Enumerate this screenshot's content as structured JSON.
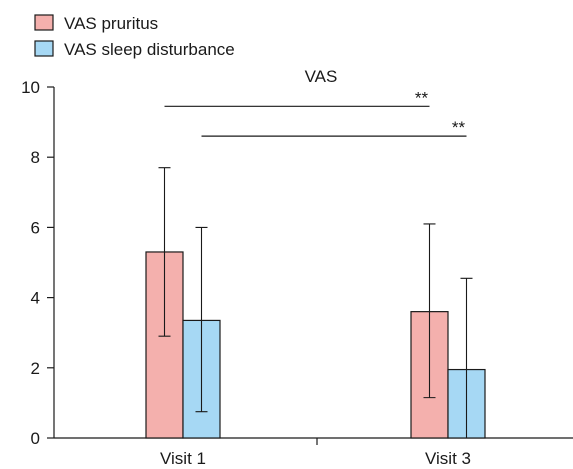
{
  "chart_data": {
    "type": "bar",
    "title": "VAS",
    "xlabel": "",
    "ylabel": "",
    "categories": [
      "Visit 1",
      "Visit 3"
    ],
    "ylim": [
      0,
      10
    ],
    "yticks": [
      "0",
      "2",
      "4",
      "6",
      "8",
      "10"
    ],
    "legend_position": "top-left",
    "grid": false,
    "series": [
      {
        "name": "VAS pruritus",
        "color": "#f4b0ad",
        "values": [
          5.3,
          3.6
        ],
        "error_upper": [
          7.7,
          6.1
        ],
        "error_lower": [
          2.9,
          1.15
        ]
      },
      {
        "name": "VAS sleep disturbance",
        "color": "#a6d8f4",
        "values": [
          3.35,
          1.95
        ],
        "error_upper": [
          6.0,
          4.55
        ],
        "error_lower": [
          0.75,
          0.0
        ]
      }
    ],
    "annotations": [
      {
        "text": "**",
        "series": "VAS pruritus",
        "y": 9.45
      },
      {
        "text": "**",
        "series": "VAS sleep disturbance",
        "y": 8.6
      }
    ]
  }
}
